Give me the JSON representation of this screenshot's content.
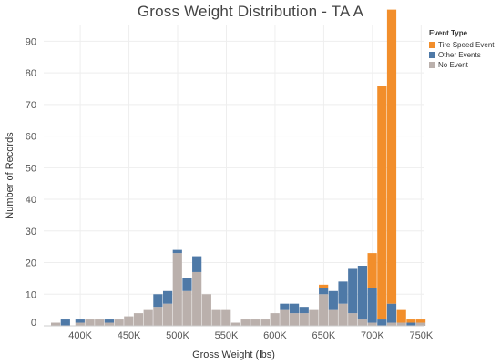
{
  "chart_data": {
    "type": "bar",
    "subtype": "stacked-histogram",
    "title": "Gross Weight Distribution - TA A",
    "xlabel": "Gross Weight (lbs)",
    "ylabel": "Number of Records",
    "xlim": [
      362500,
      752500
    ],
    "ylim": [
      0,
      95
    ],
    "bin_width": 10000,
    "x_ticks": [
      {
        "value": 400000,
        "label": "400K"
      },
      {
        "value": 450000,
        "label": "450K"
      },
      {
        "value": 500000,
        "label": "500K"
      },
      {
        "value": 550000,
        "label": "550K"
      },
      {
        "value": 600000,
        "label": "600K"
      },
      {
        "value": 650000,
        "label": "650K"
      },
      {
        "value": 700000,
        "label": "700K"
      },
      {
        "value": 750000,
        "label": "750K"
      }
    ],
    "y_ticks": [
      0,
      10,
      20,
      30,
      40,
      50,
      60,
      70,
      80,
      90
    ],
    "grid": true,
    "legend": {
      "title": "Event Type",
      "position": "top-right"
    },
    "bin_starts": [
      370000,
      380000,
      395000,
      405000,
      415000,
      425000,
      435000,
      445000,
      455000,
      465000,
      475000,
      485000,
      495000,
      505000,
      515000,
      525000,
      535000,
      545000,
      555000,
      565000,
      575000,
      585000,
      595000,
      605000,
      615000,
      625000,
      635000,
      645000,
      655000,
      665000,
      675000,
      685000,
      695000,
      705000,
      715000,
      725000,
      735000,
      745000
    ],
    "series": [
      {
        "name": "No Event",
        "color": "#bab0ac",
        "values": [
          1,
          0,
          1,
          2,
          2,
          1,
          2,
          3,
          4,
          5,
          6,
          7,
          23,
          11,
          17,
          10,
          5,
          5,
          1,
          2,
          2,
          2,
          4,
          5,
          4,
          4,
          5,
          10,
          5,
          7,
          4,
          2,
          1,
          0,
          1,
          1,
          0,
          1
        ]
      },
      {
        "name": "Other Events",
        "color": "#4e79a7",
        "values": [
          0,
          2,
          1,
          0,
          0,
          1,
          0,
          0,
          0,
          0,
          4,
          4,
          1,
          4,
          5,
          0,
          0,
          0,
          0,
          0,
          0,
          0,
          0,
          2,
          3,
          2,
          0,
          2,
          6,
          7,
          14,
          17,
          11,
          2,
          6,
          0,
          1,
          0
        ]
      },
      {
        "name": "Tire Speed Event",
        "color": "#f28e2b",
        "values": [
          0,
          0,
          0,
          0,
          0,
          0,
          0,
          0,
          0,
          0,
          0,
          0,
          0,
          0,
          0,
          0,
          0,
          0,
          0,
          0,
          0,
          0,
          0,
          0,
          0,
          0,
          0,
          1,
          0,
          0,
          0,
          0,
          11,
          74,
          93,
          4,
          1,
          1
        ]
      }
    ]
  }
}
